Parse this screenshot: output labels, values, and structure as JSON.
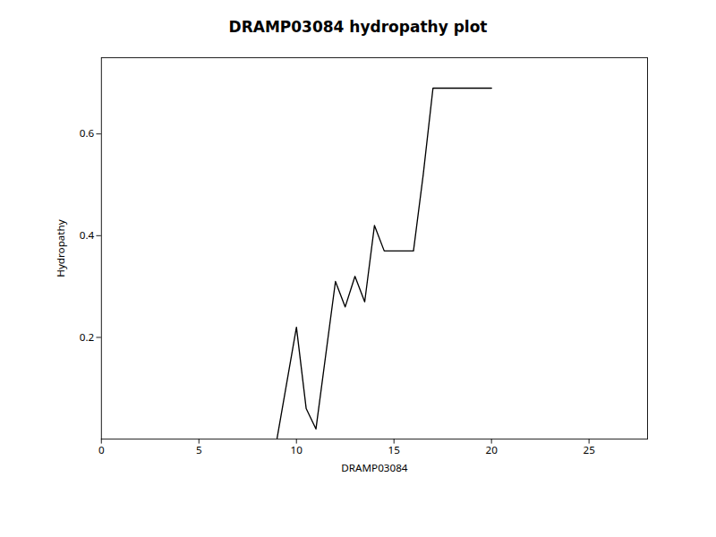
{
  "chart_data": {
    "type": "line",
    "title": "DRAMP03084 hydropathy plot",
    "xlabel": "DRAMP03084",
    "ylabel": "Hydropathy",
    "x": [
      9,
      10,
      10.5,
      11,
      12,
      12.5,
      13,
      13.5,
      14,
      14.5,
      15,
      16,
      16.5,
      17,
      20
    ],
    "values": [
      0,
      0.22,
      0.06,
      0.02,
      0.31,
      0.26,
      0.32,
      0.27,
      0.42,
      0.37,
      0.37,
      0.37,
      0.52,
      0.69,
      0.69
    ],
    "color": "#000000",
    "xlim": [
      0,
      28
    ],
    "ylim": [
      0,
      0.75
    ],
    "xticks": [
      0,
      5,
      10,
      15,
      20,
      25
    ],
    "yticks": [
      0.2,
      0.4,
      0.6
    ]
  }
}
